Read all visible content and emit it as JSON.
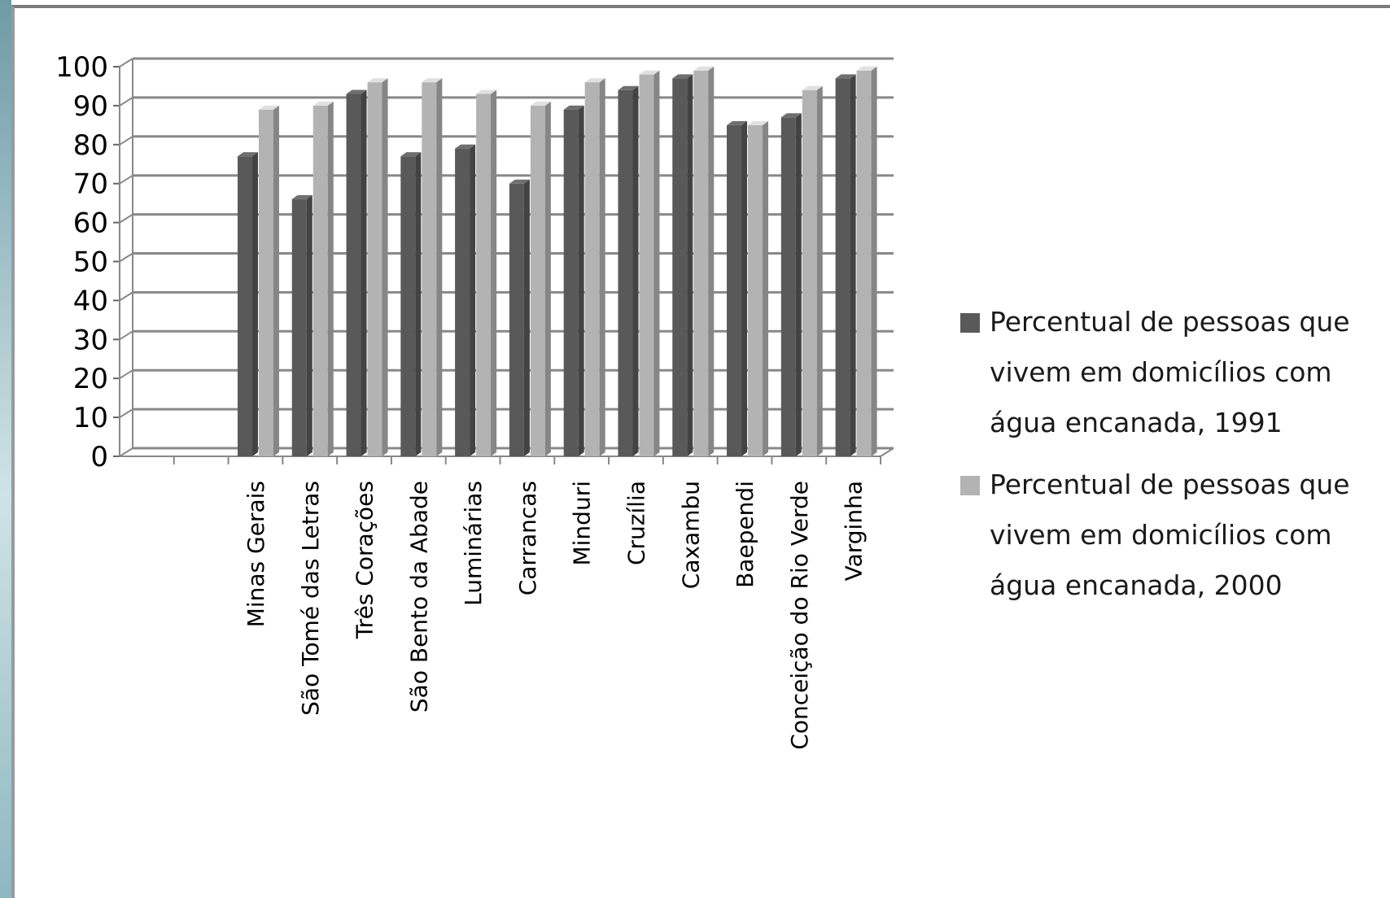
{
  "chart_data": {
    "type": "bar",
    "categories": [
      "",
      "",
      "Minas Gerais",
      "São Tomé das Letras",
      "Três Corações",
      "São Bento da Abade",
      "Luminárias",
      "Carrancas",
      "Minduri",
      "Cruzília",
      "Caxambu",
      "Baependi",
      "Conceição do Rio Verde",
      "Varginha"
    ],
    "series": [
      {
        "name": "Percentual de pessoas que vivem em domicílios com água encanada, 1991",
        "color": "#595959",
        "values": [
          null,
          null,
          77,
          66,
          93,
          77,
          79,
          70,
          89,
          94,
          97,
          85,
          87,
          97
        ]
      },
      {
        "name": "Percentual de pessoas que vivem em domicílios com água encanada, 2000",
        "color": "#b3b3b3",
        "values": [
          null,
          null,
          89,
          90,
          96,
          96,
          93,
          90,
          96,
          98,
          99,
          85,
          94,
          99
        ]
      }
    ],
    "yticks": [
      0,
      10,
      20,
      30,
      40,
      50,
      60,
      70,
      80,
      90,
      100
    ],
    "ylim": [
      0,
      100
    ],
    "grid": true,
    "legend": "right"
  }
}
